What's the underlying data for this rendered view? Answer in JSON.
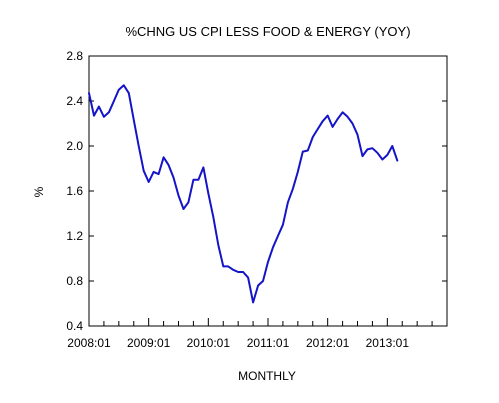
{
  "chart_data": {
    "type": "line",
    "title": "%CHNG US CPI LESS FOOD & ENERGY (YOY)",
    "xlabel": "MONTHLY",
    "ylabel": "%",
    "ylim": [
      0.4,
      2.8
    ],
    "y_ticks": [
      "0.4",
      "0.8",
      "1.2",
      "1.6",
      "2.0",
      "2.4",
      "2.8"
    ],
    "x_tick_labels": [
      "2008:01",
      "2009:01",
      "2010:01",
      "2011:01",
      "2012:01",
      "2013:01"
    ],
    "x_start": "2008:01",
    "x_end": "2013:12",
    "grid": false,
    "legend": "none",
    "colors": {
      "line": "#1414c8",
      "axes": "#000000"
    },
    "series": [
      {
        "start": "2008:01",
        "frequency": "monthly",
        "values": [
          2.47,
          2.27,
          2.35,
          2.26,
          2.3,
          2.4,
          2.5,
          2.54,
          2.47,
          2.23,
          2.0,
          1.78,
          1.68,
          1.77,
          1.75,
          1.9,
          1.83,
          1.72,
          1.56,
          1.44,
          1.5,
          1.7,
          1.7,
          1.81,
          1.58,
          1.37,
          1.12,
          0.93,
          0.93,
          0.9,
          0.88,
          0.88,
          0.83,
          0.61,
          0.76,
          0.8,
          0.97,
          1.1,
          1.2,
          1.3,
          1.5,
          1.62,
          1.77,
          1.95,
          1.96,
          2.08,
          2.15,
          2.22,
          2.27,
          2.17,
          2.24,
          2.3,
          2.26,
          2.2,
          2.1,
          1.91,
          1.97,
          1.98,
          1.94,
          1.88,
          1.92,
          2.0,
          1.87
        ]
      }
    ]
  }
}
